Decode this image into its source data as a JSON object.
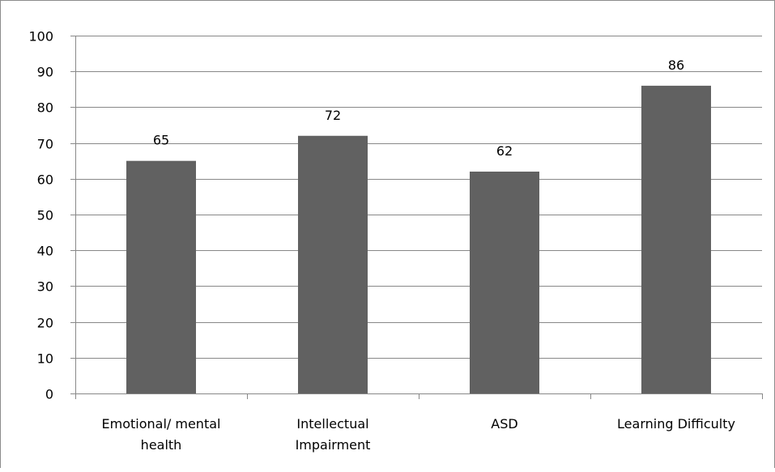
{
  "chart_data": {
    "type": "bar",
    "categories": [
      [
        "Emotional/ mental",
        "health"
      ],
      [
        "Intellectual",
        "Impairment"
      ],
      [
        "ASD"
      ],
      [
        "Learning Difficulty"
      ]
    ],
    "values": [
      65,
      72,
      62,
      86
    ],
    "data_labels": [
      "65",
      "72",
      "62",
      "86"
    ],
    "title": "",
    "xlabel": "",
    "ylabel": "",
    "ylim": [
      0,
      100
    ],
    "yticks": [
      0,
      10,
      20,
      30,
      40,
      50,
      60,
      70,
      80,
      90,
      100
    ],
    "grid": true,
    "legend": "none",
    "bar_color": "#616161",
    "grid_color": "#888888"
  }
}
